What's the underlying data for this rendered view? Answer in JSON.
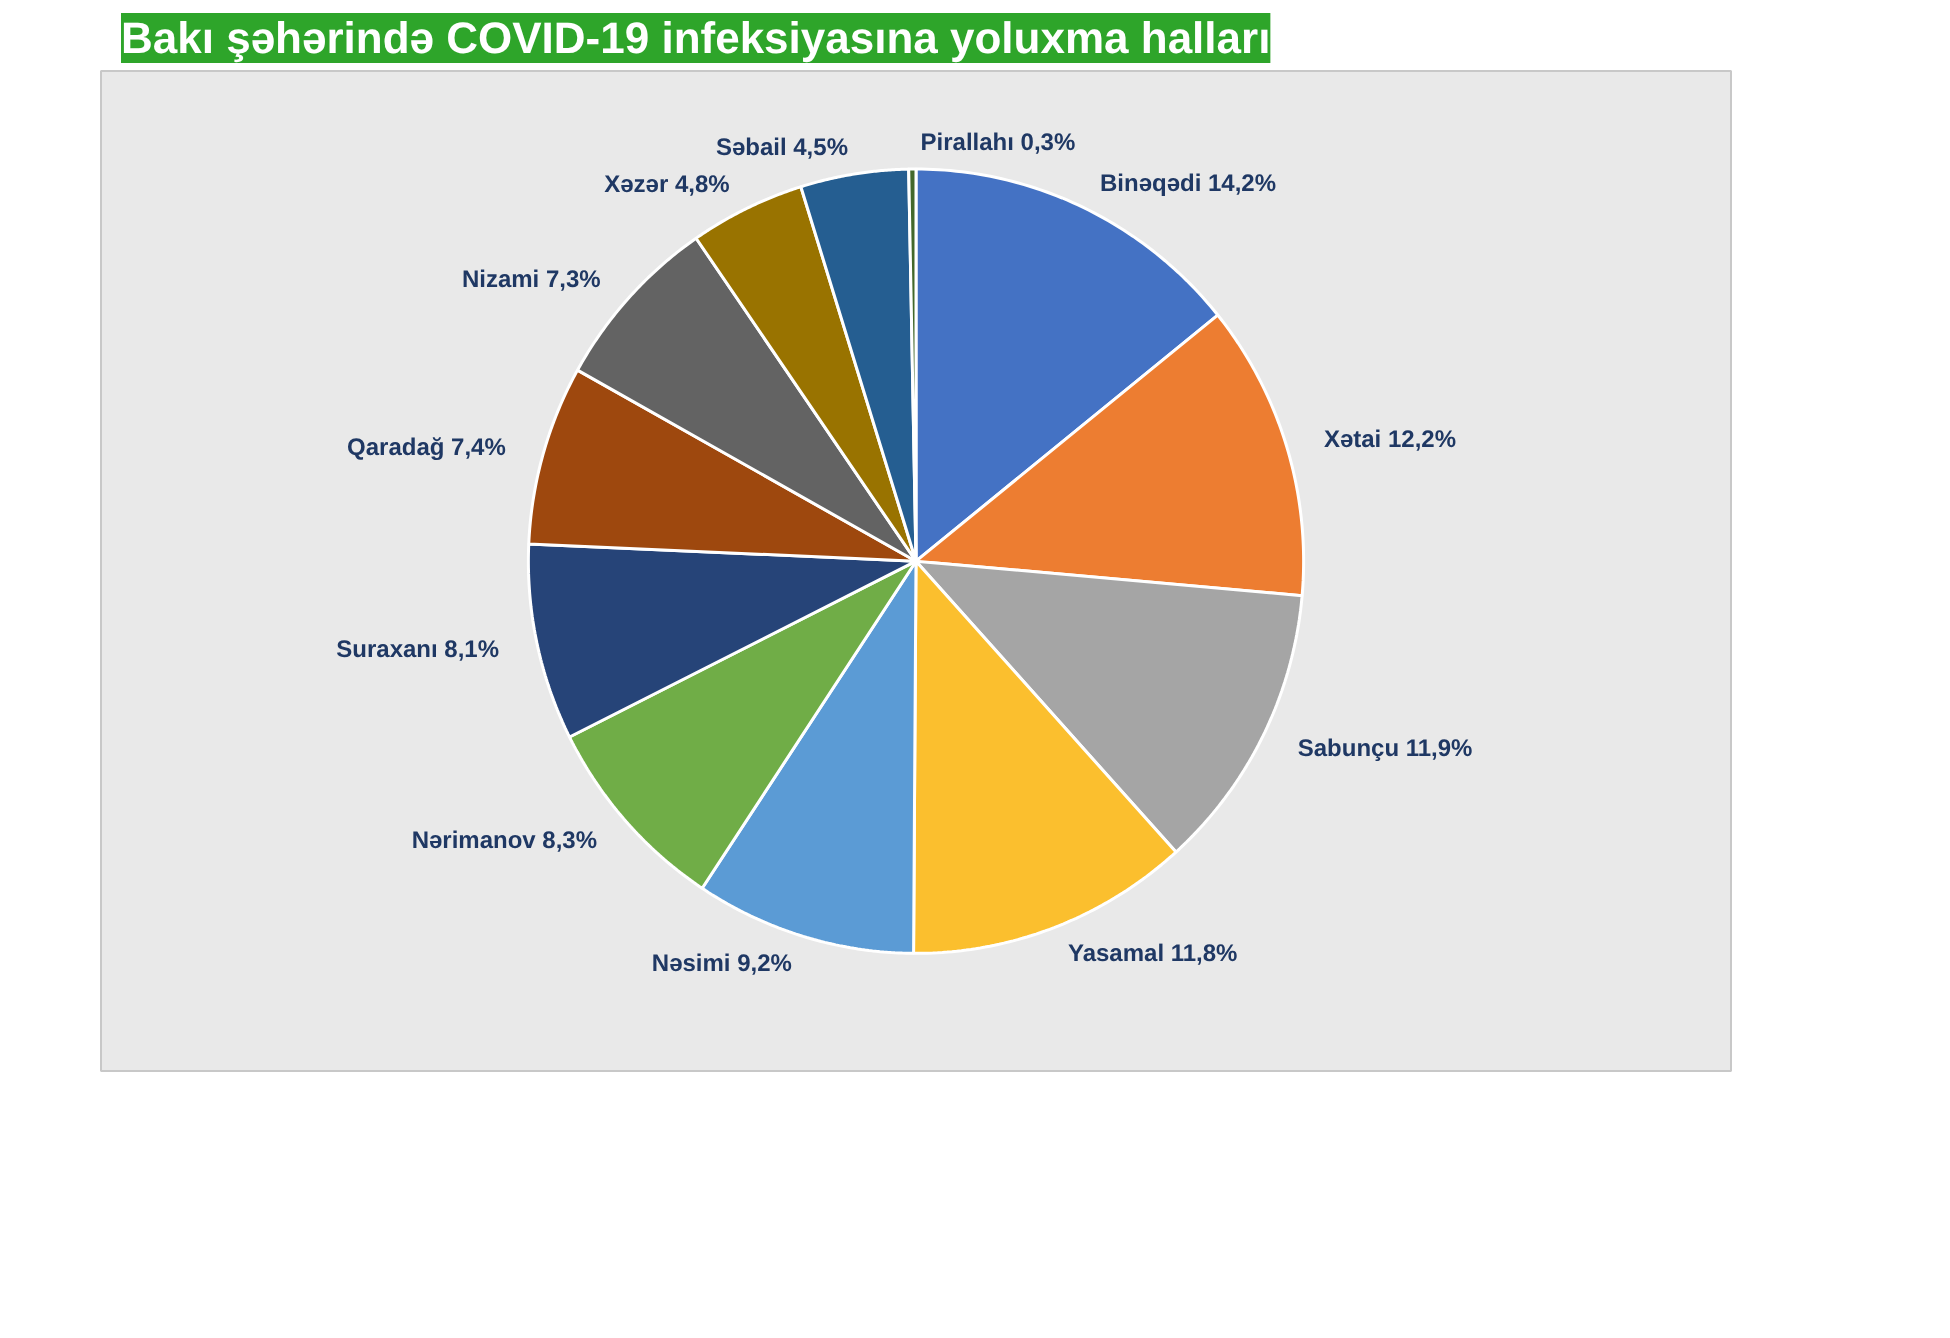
{
  "chart_data": {
    "type": "pie",
    "title": "Bakı şəhərində COVID-19 infeksiyasına yoluxma halları",
    "categories": [
      "Binəqədi",
      "Xətai",
      "Sabunçu",
      "Yasamal",
      "Nəsimi",
      "Nərimanov",
      "Suraxanı",
      "Qaradağ",
      "Nizami",
      "Xəzər",
      "Səbail",
      "Pirallahı"
    ],
    "values": [
      14.2,
      12.2,
      11.9,
      11.8,
      9.2,
      8.3,
      8.1,
      7.4,
      7.3,
      4.8,
      4.5,
      0.3
    ],
    "value_labels": [
      "14,2%",
      "12,2%",
      "11,9%",
      "11,8%",
      "9,2%",
      "8,3%",
      "8,1%",
      "7,4%",
      "7,3%",
      "4,8%",
      "4,5%",
      "0,3%"
    ],
    "colors": [
      "#4472c4",
      "#ed7d31",
      "#a5a5a5",
      "#fbbf2e",
      "#5b9bd5",
      "#70ad47",
      "#264478",
      "#9e480e",
      "#636363",
      "#997300",
      "#255e91",
      "#43682b"
    ]
  }
}
